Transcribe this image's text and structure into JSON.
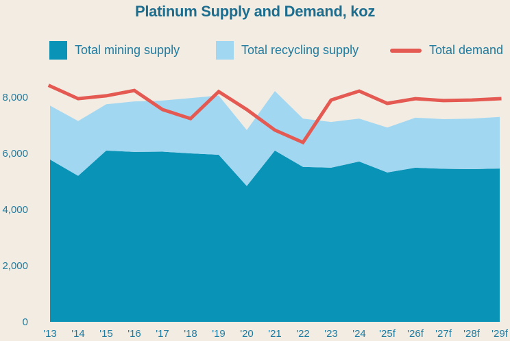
{
  "page": {
    "background": "#f2ece2"
  },
  "chart": {
    "title": "Platinum Supply and Demand, koz",
    "legend": [
      {
        "label": "Total mining supply",
        "swatch": "square",
        "color": "#0993b7"
      },
      {
        "label": "Total recycling supply",
        "swatch": "square",
        "color": "#a2d7f2"
      },
      {
        "label": "Total demand",
        "swatch": "line",
        "color": "#e45a52"
      }
    ]
  },
  "chart_data": {
    "type": "area",
    "stacked": true,
    "title": "Platinum Supply and Demand, koz",
    "unit": "koz",
    "grid": false,
    "legend_position": "top",
    "categories": [
      "'13",
      "'14",
      "'15",
      "'16",
      "'17",
      "'18",
      "'19",
      "'20",
      "'21",
      "'22",
      "'23",
      "'24",
      "'25f",
      "'26f",
      "'27f",
      "'28f",
      "'29f"
    ],
    "series": [
      {
        "name": "Total mining supply",
        "type": "area",
        "color": "#0993b7",
        "values": [
          5780,
          5200,
          6100,
          6050,
          6060,
          6000,
          5950,
          4840,
          6100,
          5520,
          5490,
          5710,
          5320,
          5490,
          5450,
          5440,
          5460
        ]
      },
      {
        "name": "Total recycling supply",
        "type": "area",
        "color": "#a2d7f2",
        "values": [
          1920,
          1950,
          1650,
          1800,
          1820,
          1970,
          2110,
          1990,
          2120,
          1720,
          1630,
          1530,
          1600,
          1780,
          1770,
          1800,
          1840
        ]
      },
      {
        "name": "Total demand",
        "type": "line",
        "color": "#e45a52",
        "values": [
          8400,
          7950,
          8050,
          8240,
          7560,
          7240,
          8200,
          7560,
          6830,
          6390,
          7900,
          8220,
          7780,
          7950,
          7880,
          7900,
          7950
        ]
      }
    ],
    "total_supply_values": [
      7700,
      7150,
      7750,
      7850,
      7880,
      7970,
      8060,
      6830,
      8220,
      7240,
      7120,
      7240,
      6920,
      7270,
      7220,
      7240,
      7300
    ],
    "ylim": [
      0,
      8800
    ],
    "yticks": [
      {
        "label": "0",
        "value": 0
      },
      {
        "label": "2,000",
        "value": 2000
      },
      {
        "label": "4,000",
        "value": 4000
      },
      {
        "label": "6,000",
        "value": 6000
      },
      {
        "label": "8,000",
        "value": 8000
      }
    ]
  }
}
